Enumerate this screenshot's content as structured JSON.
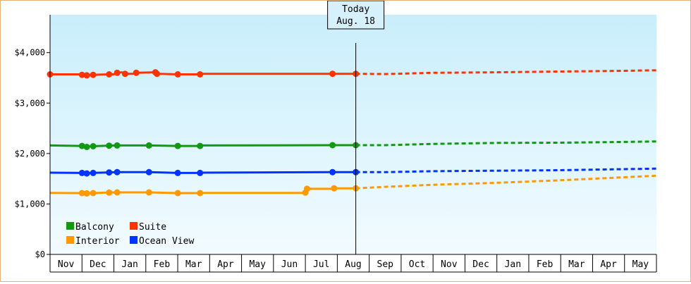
{
  "chart_data": {
    "type": "line",
    "title": "",
    "xlabel": "",
    "ylabel": "",
    "ylim": [
      0,
      4750
    ],
    "y_ticks": [
      {
        "value": 0,
        "label": "$0"
      },
      {
        "value": 1000,
        "label": "$1,000"
      },
      {
        "value": 2000,
        "label": "$2,000"
      },
      {
        "value": 3000,
        "label": "$3,000"
      },
      {
        "value": 4000,
        "label": "$4,000"
      }
    ],
    "x_months": [
      "Nov",
      "Dec",
      "Jan",
      "Feb",
      "Mar",
      "Apr",
      "May",
      "Jun",
      "Jul",
      "Aug",
      "Sep",
      "Oct",
      "Nov",
      "Dec",
      "Jan",
      "Feb",
      "Mar",
      "Apr",
      "May"
    ],
    "x_unit": "month index (0 = start of Nov)",
    "today": {
      "label_line1": "Today",
      "label_line2": "Aug. 18",
      "x": 9.58
    },
    "grid": false,
    "legend_placement": "bottom-left",
    "background_gradient": [
      "#c9eefb",
      "#f2fbff"
    ],
    "series": [
      {
        "name": "Balcony",
        "color": "#119911",
        "history": [
          [
            0,
            2160
          ],
          [
            1.0,
            2150
          ],
          [
            1.1,
            2130
          ],
          [
            1.3,
            2145
          ],
          [
            1.8,
            2155
          ],
          [
            2.1,
            2160
          ],
          [
            3.1,
            2160
          ],
          [
            4.0,
            2150
          ],
          [
            4.7,
            2150
          ],
          [
            4.75,
            2160
          ],
          [
            8.85,
            2165
          ],
          [
            9.58,
            2165
          ]
        ],
        "projection": [
          [
            9.58,
            2165
          ],
          [
            10.5,
            2165
          ],
          [
            12,
            2190
          ],
          [
            14,
            2210
          ],
          [
            16,
            2215
          ],
          [
            18,
            2230
          ],
          [
            19,
            2240
          ]
        ]
      },
      {
        "name": "Suite",
        "color": "#ff3300",
        "history": [
          [
            0,
            3570
          ],
          [
            1.0,
            3570
          ],
          [
            1.1,
            3550
          ],
          [
            1.3,
            3560
          ],
          [
            1.8,
            3570
          ],
          [
            2.0,
            3570
          ],
          [
            2.1,
            3600
          ],
          [
            2.25,
            3610
          ],
          [
            2.35,
            3580
          ],
          [
            2.6,
            3580
          ],
          [
            2.7,
            3600
          ],
          [
            3.3,
            3610
          ],
          [
            3.35,
            3580
          ],
          [
            4.0,
            3570
          ],
          [
            4.6,
            3570
          ],
          [
            4.7,
            3580
          ],
          [
            8.85,
            3580
          ],
          [
            9.58,
            3580
          ]
        ],
        "projection": [
          [
            9.58,
            3580
          ],
          [
            10.5,
            3575
          ],
          [
            12,
            3600
          ],
          [
            14,
            3610
          ],
          [
            16,
            3625
          ],
          [
            18,
            3640
          ],
          [
            19,
            3650
          ]
        ]
      },
      {
        "name": "Interior",
        "color": "#ff9900",
        "history": [
          [
            0,
            1220
          ],
          [
            1.0,
            1215
          ],
          [
            1.1,
            1210
          ],
          [
            1.3,
            1215
          ],
          [
            1.8,
            1225
          ],
          [
            2.1,
            1230
          ],
          [
            3.1,
            1230
          ],
          [
            4.0,
            1215
          ],
          [
            4.7,
            1215
          ],
          [
            4.75,
            1220
          ],
          [
            8.0,
            1220
          ],
          [
            8.05,
            1300
          ],
          [
            8.85,
            1300
          ],
          [
            8.9,
            1310
          ],
          [
            9.58,
            1310
          ]
        ],
        "projection": [
          [
            9.58,
            1310
          ],
          [
            10.5,
            1340
          ],
          [
            12,
            1380
          ],
          [
            14,
            1420
          ],
          [
            16,
            1470
          ],
          [
            18,
            1530
          ],
          [
            19,
            1560
          ]
        ]
      },
      {
        "name": "Ocean View",
        "color": "#0033ff",
        "history": [
          [
            0,
            1620
          ],
          [
            1.0,
            1615
          ],
          [
            1.1,
            1605
          ],
          [
            1.3,
            1615
          ],
          [
            1.8,
            1625
          ],
          [
            2.1,
            1630
          ],
          [
            3.1,
            1630
          ],
          [
            4.0,
            1615
          ],
          [
            4.7,
            1615
          ],
          [
            4.75,
            1620
          ],
          [
            8.85,
            1630
          ],
          [
            9.58,
            1630
          ]
        ],
        "projection": [
          [
            9.58,
            1630
          ],
          [
            10.5,
            1630
          ],
          [
            12,
            1650
          ],
          [
            14,
            1660
          ],
          [
            16,
            1670
          ],
          [
            18,
            1690
          ],
          [
            19,
            1700
          ]
        ]
      }
    ],
    "markers": {
      "Balcony": [
        [
          1.0,
          2150
        ],
        [
          1.15,
          2130
        ],
        [
          1.35,
          2145
        ],
        [
          1.85,
          2155
        ],
        [
          2.1,
          2160
        ],
        [
          3.1,
          2160
        ],
        [
          4.0,
          2150
        ],
        [
          4.7,
          2150
        ],
        [
          8.85,
          2165
        ],
        [
          9.58,
          2165
        ]
      ],
      "Suite": [
        [
          0,
          3570
        ],
        [
          1.0,
          3560
        ],
        [
          1.15,
          3550
        ],
        [
          1.35,
          3560
        ],
        [
          1.85,
          3570
        ],
        [
          2.1,
          3600
        ],
        [
          2.35,
          3580
        ],
        [
          2.7,
          3600
        ],
        [
          3.3,
          3610
        ],
        [
          3.35,
          3580
        ],
        [
          4.0,
          3570
        ],
        [
          4.7,
          3570
        ],
        [
          8.85,
          3580
        ],
        [
          9.58,
          3580
        ]
      ],
      "Interior": [
        [
          1.0,
          1215
        ],
        [
          1.15,
          1210
        ],
        [
          1.35,
          1215
        ],
        [
          1.85,
          1225
        ],
        [
          2.1,
          1230
        ],
        [
          3.1,
          1230
        ],
        [
          4.0,
          1215
        ],
        [
          4.7,
          1215
        ],
        [
          8.0,
          1225
        ],
        [
          8.05,
          1300
        ],
        [
          8.9,
          1310
        ],
        [
          9.58,
          1310
        ]
      ],
      "Ocean View": [
        [
          1.0,
          1615
        ],
        [
          1.15,
          1605
        ],
        [
          1.35,
          1615
        ],
        [
          1.85,
          1625
        ],
        [
          2.1,
          1630
        ],
        [
          3.1,
          1630
        ],
        [
          4.0,
          1615
        ],
        [
          4.7,
          1615
        ],
        [
          8.85,
          1630
        ],
        [
          9.58,
          1630
        ]
      ]
    }
  }
}
